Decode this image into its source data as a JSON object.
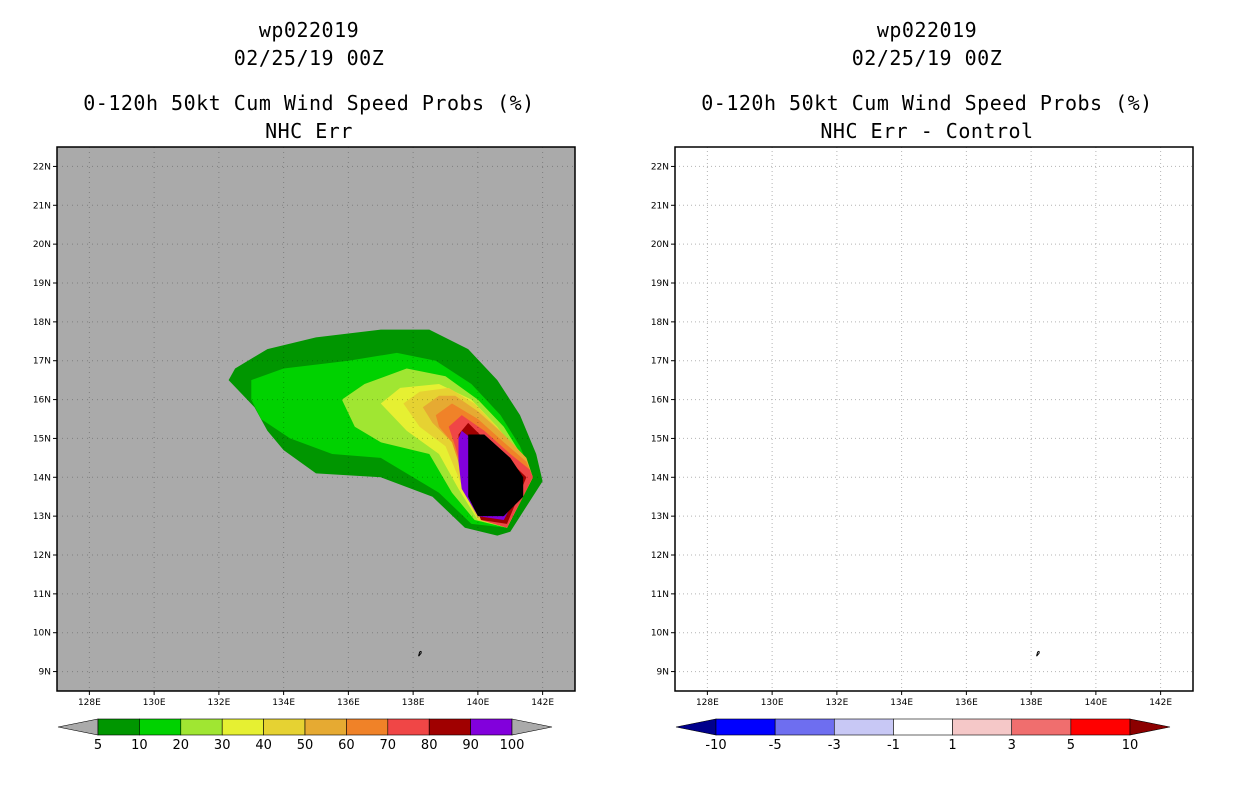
{
  "panels": [
    {
      "storm_id": "wp022019",
      "datetime": "02/25/19 00Z",
      "product": "0-120h 50kt Cum Wind Speed Probs (%)",
      "subtitle": "NHC Err"
    },
    {
      "storm_id": "wp022019",
      "datetime": "02/25/19 00Z",
      "product": "0-120h 50kt Cum Wind Speed Probs (%)",
      "subtitle": "NHC Err - Control"
    }
  ],
  "colors": {
    "background_gray": "#aaaaaa",
    "grid": "#b4b4b4"
  },
  "chart_data": [
    {
      "type": "filled-contour-map",
      "title": "0-120h 50kt Cum Wind Speed Probs (%) NHC Err",
      "xlim": [
        127.0,
        143.0
      ],
      "ylim": [
        8.5,
        22.5
      ],
      "x_ticks": [
        128,
        130,
        132,
        134,
        136,
        138,
        140,
        142
      ],
      "x_tick_labels": [
        "128E",
        "130E",
        "132E",
        "134E",
        "136E",
        "138E",
        "140E",
        "142E"
      ],
      "y_ticks": [
        9,
        10,
        11,
        12,
        13,
        14,
        15,
        16,
        17,
        18,
        19,
        20,
        21,
        22
      ],
      "y_tick_labels": [
        "9N",
        "10N",
        "11N",
        "12N",
        "13N",
        "14N",
        "15N",
        "16N",
        "17N",
        "18N",
        "19N",
        "20N",
        "21N",
        "22N"
      ],
      "colorbar": {
        "levels": [
          5,
          10,
          20,
          30,
          40,
          50,
          60,
          70,
          80,
          90,
          100
        ],
        "level_labels": [
          "5",
          "10",
          "20",
          "30",
          "40",
          "50",
          "60",
          "70",
          "80",
          "90",
          "100"
        ],
        "colors": [
          "#009600",
          "#00d200",
          "#a0e632",
          "#e6f032",
          "#e6d232",
          "#e6aa32",
          "#f08228",
          "#f04646",
          "#a00000",
          "#8200dc"
        ],
        "under_color": "#aaaaaa",
        "over_color": "#aaaaaa"
      },
      "contours": [
        {
          "level": 5,
          "points": [
            [
              132.5,
              16.8
            ],
            [
              133.5,
              17.3
            ],
            [
              135.0,
              17.6
            ],
            [
              137.0,
              17.8
            ],
            [
              138.5,
              17.8
            ],
            [
              139.7,
              17.3
            ],
            [
              140.6,
              16.5
            ],
            [
              141.3,
              15.6
            ],
            [
              141.8,
              14.6
            ],
            [
              142.0,
              13.9
            ],
            [
              141.0,
              12.6
            ],
            [
              140.6,
              12.5
            ],
            [
              139.6,
              12.7
            ],
            [
              138.6,
              13.5
            ],
            [
              137.0,
              14.0
            ],
            [
              135.0,
              14.1
            ],
            [
              134.0,
              14.7
            ],
            [
              133.5,
              15.2
            ],
            [
              133.1,
              15.8
            ],
            [
              132.3,
              16.5
            ]
          ]
        },
        {
          "level": 10,
          "points": [
            [
              133.0,
              16.5
            ],
            [
              134.0,
              16.8
            ],
            [
              136.0,
              17.0
            ],
            [
              137.5,
              17.2
            ],
            [
              138.7,
              17.0
            ],
            [
              139.8,
              16.4
            ],
            [
              140.7,
              15.6
            ],
            [
              141.3,
              14.8
            ],
            [
              141.7,
              14.0
            ],
            [
              140.9,
              12.7
            ],
            [
              139.8,
              12.8
            ],
            [
              138.8,
              13.6
            ],
            [
              137.0,
              14.5
            ],
            [
              135.5,
              14.6
            ],
            [
              134.2,
              15.0
            ],
            [
              133.3,
              15.5
            ],
            [
              133.0,
              16.0
            ]
          ]
        },
        {
          "level": 20,
          "points": [
            [
              135.8,
              16.0
            ],
            [
              136.5,
              16.4
            ],
            [
              137.8,
              16.8
            ],
            [
              139.0,
              16.6
            ],
            [
              140.0,
              16.0
            ],
            [
              140.8,
              15.3
            ],
            [
              141.4,
              14.5
            ],
            [
              141.7,
              14.0
            ],
            [
              140.9,
              12.7
            ],
            [
              139.9,
              12.9
            ],
            [
              139.2,
              13.6
            ],
            [
              138.5,
              14.6
            ],
            [
              137.0,
              14.9
            ],
            [
              136.2,
              15.3
            ]
          ]
        },
        {
          "level": 30,
          "points": [
            [
              137.0,
              15.9
            ],
            [
              137.6,
              16.3
            ],
            [
              138.8,
              16.4
            ],
            [
              139.8,
              16.0
            ],
            [
              140.6,
              15.3
            ],
            [
              141.3,
              14.5
            ],
            [
              141.7,
              14.0
            ],
            [
              140.9,
              12.7
            ],
            [
              140.0,
              12.9
            ],
            [
              139.4,
              13.7
            ],
            [
              138.8,
              14.6
            ],
            [
              137.8,
              15.2
            ]
          ]
        },
        {
          "level": 40,
          "points": [
            [
              137.7,
              15.9
            ],
            [
              138.2,
              16.2
            ],
            [
              139.1,
              16.3
            ],
            [
              139.9,
              15.9
            ],
            [
              140.7,
              15.2
            ],
            [
              141.4,
              14.5
            ],
            [
              141.7,
              14.0
            ],
            [
              140.9,
              12.7
            ],
            [
              140.0,
              12.9
            ],
            [
              139.5,
              13.8
            ],
            [
              139.0,
              14.8
            ],
            [
              138.2,
              15.3
            ]
          ]
        },
        {
          "level": 50,
          "points": [
            [
              138.3,
              15.8
            ],
            [
              138.8,
              16.1
            ],
            [
              139.3,
              16.1
            ],
            [
              140.0,
              15.7
            ],
            [
              140.8,
              15.1
            ],
            [
              141.5,
              14.5
            ],
            [
              141.7,
              14.0
            ],
            [
              140.9,
              12.7
            ],
            [
              140.1,
              12.9
            ],
            [
              139.6,
              13.9
            ],
            [
              139.2,
              14.9
            ],
            [
              138.6,
              15.4
            ]
          ]
        },
        {
          "level": 60,
          "points": [
            [
              138.7,
              15.6
            ],
            [
              139.2,
              15.9
            ],
            [
              140.0,
              15.5
            ],
            [
              140.8,
              14.9
            ],
            [
              141.5,
              14.4
            ],
            [
              141.7,
              14.0
            ],
            [
              140.9,
              12.7
            ],
            [
              140.1,
              12.9
            ],
            [
              139.6,
              13.9
            ],
            [
              139.2,
              14.9
            ],
            [
              138.8,
              15.3
            ]
          ]
        },
        {
          "level": 70,
          "points": [
            [
              139.1,
              15.3
            ],
            [
              139.5,
              15.6
            ],
            [
              140.2,
              15.2
            ],
            [
              141.0,
              14.6
            ],
            [
              141.6,
              14.2
            ],
            [
              141.7,
              14.0
            ],
            [
              140.9,
              12.7
            ],
            [
              140.1,
              12.9
            ],
            [
              139.6,
              13.9
            ],
            [
              139.3,
              14.8
            ]
          ]
        },
        {
          "level": 80,
          "points": [
            [
              139.4,
              15.1
            ],
            [
              139.7,
              15.4
            ],
            [
              140.3,
              14.9
            ],
            [
              141.0,
              14.4
            ],
            [
              141.5,
              14.0
            ],
            [
              140.9,
              12.8
            ],
            [
              140.1,
              12.9
            ],
            [
              139.6,
              13.9
            ],
            [
              139.4,
              14.6
            ]
          ]
        },
        {
          "level": 90,
          "points": [
            [
              139.4,
              15.0
            ],
            [
              139.5,
              15.2
            ],
            [
              140.1,
              14.8
            ],
            [
              140.8,
              14.3
            ],
            [
              141.3,
              13.7
            ],
            [
              140.8,
              12.9
            ],
            [
              140.0,
              13.0
            ],
            [
              139.5,
              13.7
            ],
            [
              139.4,
              14.4
            ]
          ]
        },
        {
          "level": 100,
          "points": [
            [
              139.7,
              15.1
            ],
            [
              140.2,
              15.1
            ],
            [
              141.0,
              14.5
            ],
            [
              141.4,
              14.0
            ],
            [
              141.4,
              13.5
            ],
            [
              140.8,
              13.0
            ],
            [
              140.0,
              13.0
            ],
            [
              139.7,
              13.5
            ]
          ]
        }
      ],
      "marker": {
        "lon": 138.2,
        "lat": 9.5
      }
    },
    {
      "type": "filled-contour-map",
      "title": "0-120h 50kt Cum Wind Speed Probs (%) NHC Err - Control",
      "xlim": [
        127.0,
        143.0
      ],
      "ylim": [
        8.5,
        22.5
      ],
      "x_ticks": [
        128,
        130,
        132,
        134,
        136,
        138,
        140,
        142
      ],
      "x_tick_labels": [
        "128E",
        "130E",
        "132E",
        "134E",
        "136E",
        "138E",
        "140E",
        "142E"
      ],
      "y_ticks": [
        9,
        10,
        11,
        12,
        13,
        14,
        15,
        16,
        17,
        18,
        19,
        20,
        21,
        22
      ],
      "y_tick_labels": [
        "9N",
        "10N",
        "11N",
        "12N",
        "13N",
        "14N",
        "15N",
        "16N",
        "17N",
        "18N",
        "19N",
        "20N",
        "21N",
        "22N"
      ],
      "grid": true,
      "colorbar": {
        "levels": [
          -10,
          -5,
          -3,
          -1,
          1,
          3,
          5,
          10
        ],
        "level_labels": [
          "-10",
          "-5",
          "-3",
          "-1",
          "1",
          "3",
          "5",
          "10"
        ],
        "colors": [
          "#0000ff",
          "#6e6ef0",
          "#c8c8f5",
          "#ffffff",
          "#f5c8c8",
          "#f06e6e",
          "#ff0000"
        ],
        "under_color": "#00008c",
        "over_color": "#8c0000"
      },
      "contours": [],
      "marker": {
        "lon": 138.2,
        "lat": 9.5
      }
    }
  ]
}
